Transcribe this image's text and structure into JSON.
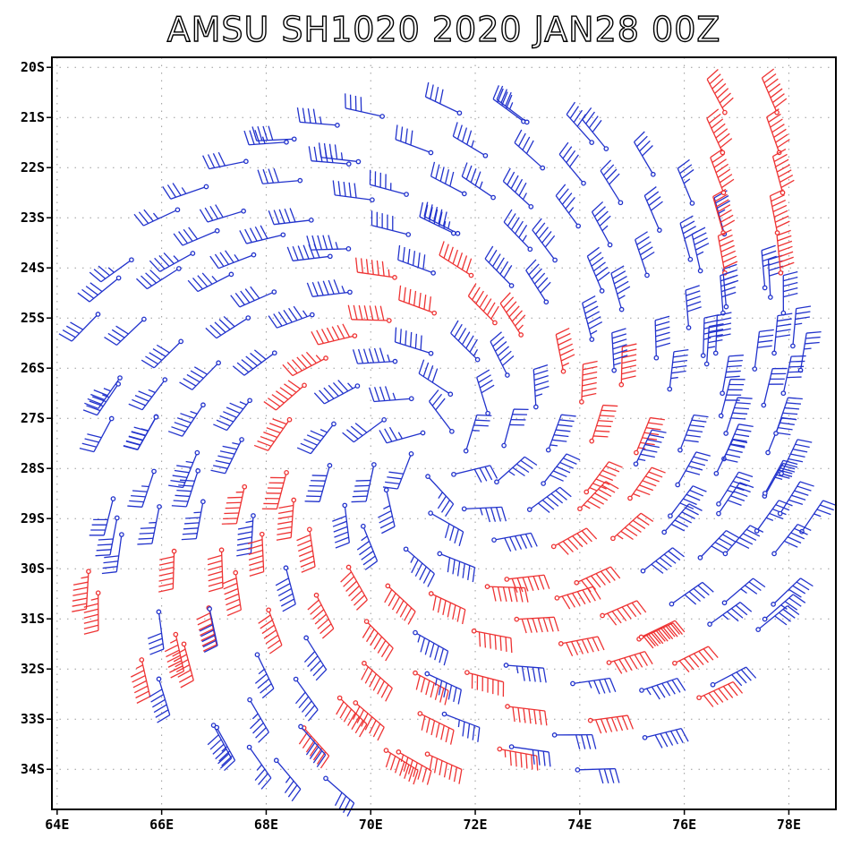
{
  "chart_data": {
    "type": "wind-barb",
    "title": "AMSU SH1020 2020 JAN28 00Z",
    "xlabel": "",
    "ylabel": "",
    "xlim": [
      63.9,
      78.9
    ],
    "ylim": [
      -34.8,
      -19.8
    ],
    "x_ticks": [
      64,
      66,
      68,
      70,
      72,
      74,
      76,
      78
    ],
    "x_tick_labels": [
      "64E",
      "66E",
      "68E",
      "70E",
      "72E",
      "74E",
      "76E",
      "78E"
    ],
    "y_ticks": [
      -20,
      -21,
      -22,
      -23,
      -24,
      -25,
      -26,
      -27,
      -28,
      -29,
      -30,
      -31,
      -32,
      -33,
      -34
    ],
    "y_tick_labels": [
      "20S",
      "21S",
      "22S",
      "23S",
      "24S",
      "25S",
      "26S",
      "27S",
      "28S",
      "29S",
      "30S",
      "31S",
      "32S",
      "33S",
      "34S"
    ],
    "grid": true,
    "grid_style": "dotted",
    "storm_center": {
      "lon": 71.3,
      "lat": -27.7
    },
    "series": [
      {
        "color": "#2233cc",
        "speed_kt": [
          25,
          65
        ]
      },
      {
        "color": "#ee3333",
        "speed_kt": [
          65,
          90
        ]
      }
    ],
    "rings": [
      {
        "radius_deg": 0.5,
        "count": 6,
        "speed_kt": 35,
        "inflow_deg": 30
      },
      {
        "radius_deg": 1.2,
        "count": 10,
        "speed_kt": 45,
        "inflow_deg": 28
      },
      {
        "radius_deg": 2.0,
        "count": 16,
        "speed_kt": 60,
        "inflow_deg": 25
      },
      {
        "radius_deg": 2.8,
        "count": 22,
        "speed_kt": 70,
        "inflow_deg": 24
      },
      {
        "radius_deg": 3.6,
        "count": 28,
        "speed_kt": 65,
        "inflow_deg": 22
      },
      {
        "radius_deg": 4.4,
        "count": 34,
        "speed_kt": 55,
        "inflow_deg": 22
      },
      {
        "radius_deg": 5.2,
        "count": 40,
        "speed_kt": 48,
        "inflow_deg": 20
      },
      {
        "radius_deg": 6.0,
        "count": 46,
        "speed_kt": 42,
        "inflow_deg": 20
      },
      {
        "radius_deg": 6.8,
        "count": 52,
        "speed_kt": 38,
        "inflow_deg": 18
      }
    ],
    "strong_sector": {
      "from_deg": 200,
      "to_deg": 330,
      "boost_kt": 25
    },
    "outer_column": {
      "lon_min": 76.6,
      "lon_max": 78.3,
      "lat_min": -30.2,
      "lat_max": -20.9
    }
  }
}
